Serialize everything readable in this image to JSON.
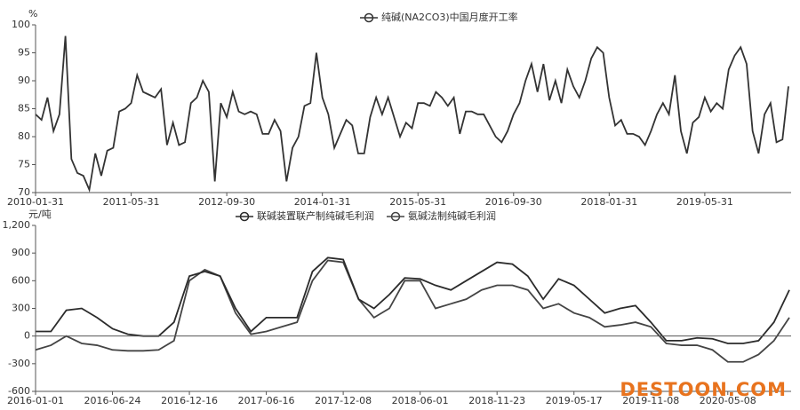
{
  "chart_data": [
    {
      "type": "line",
      "y_unit": "%",
      "categories": [
        "2010-01-31",
        null,
        null,
        null,
        null,
        null,
        null,
        null,
        null,
        null,
        null,
        null,
        null,
        null,
        null,
        null,
        "2011-05-31",
        null,
        null,
        null,
        null,
        null,
        null,
        null,
        null,
        null,
        null,
        null,
        null,
        null,
        null,
        null,
        "2012-09-30",
        null,
        null,
        null,
        null,
        null,
        null,
        null,
        null,
        null,
        null,
        null,
        null,
        null,
        null,
        null,
        "2014-01-31",
        null,
        null,
        null,
        null,
        null,
        null,
        null,
        null,
        null,
        null,
        null,
        null,
        null,
        null,
        null,
        "2015-05-31",
        null,
        null,
        null,
        null,
        null,
        null,
        null,
        null,
        null,
        null,
        null,
        null,
        null,
        null,
        null,
        "2016-09-30",
        null,
        null,
        null,
        null,
        null,
        null,
        null,
        null,
        null,
        null,
        null,
        null,
        null,
        null,
        null,
        "2018-01-31",
        null,
        null,
        null,
        null,
        null,
        null,
        null,
        null,
        null,
        null,
        null,
        null,
        null,
        null,
        null,
        "2019-05-31",
        null,
        null,
        null,
        null,
        null,
        null,
        null,
        null,
        null,
        null,
        null,
        null,
        null,
        null
      ],
      "series": [
        {
          "name": "纯碱(NA2CO3)中国月度开工率",
          "color": "#333333",
          "values": [
            84,
            83,
            87,
            81,
            84,
            98,
            76,
            73.5,
            73,
            70.5,
            77,
            73,
            77.5,
            78,
            84.5,
            85,
            86,
            91,
            88,
            87.5,
            87,
            88.5,
            78.5,
            82.5,
            78.5,
            79,
            86,
            87,
            90,
            88,
            72,
            86,
            83.5,
            88,
            84.5,
            84,
            84.5,
            84,
            80.5,
            80.5,
            83,
            81,
            72,
            78,
            80,
            85.5,
            86,
            95,
            87,
            84,
            78,
            80.5,
            83,
            82,
            77,
            77,
            83.5,
            87,
            84,
            87,
            83.5,
            80,
            82.5,
            81.5,
            86,
            86,
            85.5,
            88,
            87,
            85.5,
            87,
            80.5,
            84.5,
            84.5,
            84,
            84,
            82,
            80,
            79,
            81,
            84,
            86,
            90,
            93,
            88,
            93,
            86.5,
            90,
            86,
            92,
            89,
            87,
            90,
            94,
            96,
            95,
            87,
            82,
            83,
            80.5,
            80.5,
            80,
            78.5,
            81,
            84,
            86,
            84,
            91,
            81,
            77,
            82.5,
            83.5,
            87,
            84.5,
            86,
            85,
            92,
            94.5,
            96,
            93,
            81,
            77,
            84,
            86,
            79,
            79.5,
            89
          ]
        }
      ],
      "ylim": [
        70,
        100
      ],
      "yticks": [
        70,
        75,
        80,
        85,
        90,
        95,
        100
      ],
      "legend": "top"
    },
    {
      "type": "line",
      "y_unit": "元/吨",
      "categories": [
        "2016-01-01",
        null,
        null,
        null,
        null,
        "2016-06-24",
        null,
        null,
        null,
        null,
        "2016-12-16",
        null,
        null,
        null,
        null,
        "2017-06-16",
        null,
        null,
        null,
        null,
        "2017-12-08",
        null,
        null,
        null,
        null,
        "2018-06-01",
        null,
        null,
        null,
        null,
        "2018-11-23",
        null,
        null,
        null,
        null,
        "2019-05-17",
        null,
        null,
        null,
        null,
        "2019-11-08",
        null,
        null,
        null,
        null,
        "2020-05-08",
        null,
        null,
        null,
        null
      ],
      "series": [
        {
          "name": "联碱装置联产制纯碱毛利润",
          "color": "#2b2b2b",
          "values": [
            50,
            50,
            280,
            300,
            200,
            80,
            20,
            0,
            0,
            150,
            650,
            700,
            650,
            300,
            50,
            200,
            200,
            200,
            700,
            850,
            830,
            400,
            300,
            450,
            630,
            620,
            550,
            500,
            600,
            700,
            800,
            780,
            650,
            400,
            620,
            550,
            400,
            250,
            300,
            330,
            150,
            -50,
            -50,
            -20,
            -30,
            -80,
            -80,
            -50,
            150,
            500
          ]
        },
        {
          "name": "氨碱法制纯碱毛利润",
          "color": "#444444",
          "values": [
            -150,
            -100,
            0,
            -80,
            -100,
            -150,
            -160,
            -160,
            -150,
            -50,
            600,
            720,
            650,
            250,
            20,
            50,
            100,
            150,
            600,
            820,
            800,
            400,
            200,
            300,
            600,
            600,
            300,
            350,
            400,
            500,
            550,
            550,
            500,
            300,
            350,
            250,
            200,
            100,
            120,
            150,
            100,
            -80,
            -100,
            -100,
            -150,
            -280,
            -280,
            -200,
            -50,
            200
          ]
        }
      ],
      "ylim": [
        -600,
        1200
      ],
      "yticks": [
        -600,
        -300,
        0,
        300,
        600,
        900,
        {
          "value": 1200,
          "label": "1,200"
        }
      ],
      "legend": "top"
    }
  ],
  "watermark": "DESTOON.COM"
}
